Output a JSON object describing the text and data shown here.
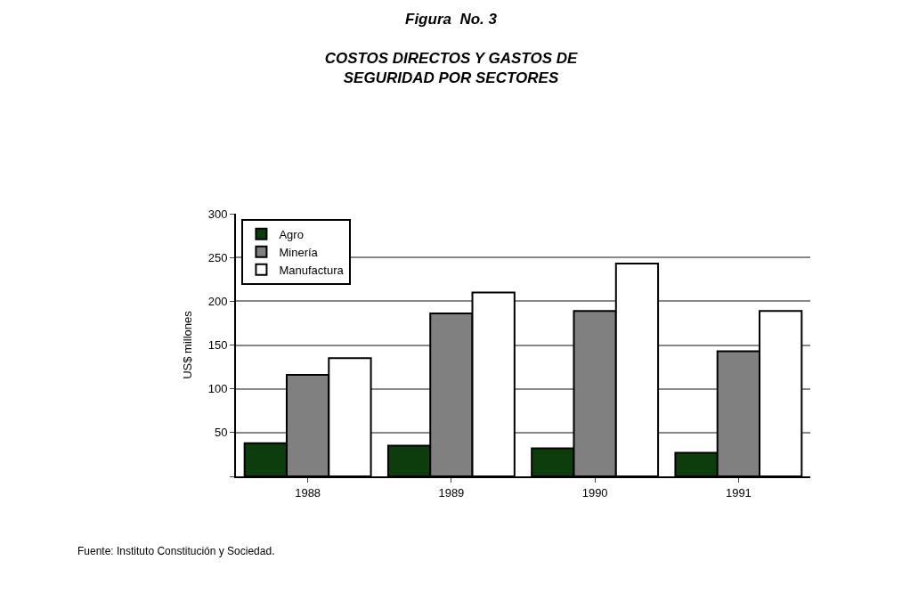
{
  "chart_data": {
    "type": "bar",
    "title": "Figura  No. 3",
    "subtitle": "COSTOS DIRECTOS Y GASTOS DE\nSEGURIDAD POR SECTORES",
    "ylabel": "US$ millones",
    "categories": [
      "1988",
      "1989",
      "1990",
      "1991"
    ],
    "series": [
      {
        "name": "Agro",
        "color": "#0d3d0d",
        "values": [
          38,
          35,
          32,
          27
        ]
      },
      {
        "name": "Minería",
        "color": "#808080",
        "values": [
          116,
          186,
          189,
          143
        ]
      },
      {
        "name": "Manufactura",
        "color": "#ffffff",
        "values": [
          135,
          210,
          243,
          189
        ]
      }
    ],
    "ylim": [
      0,
      300
    ],
    "yticks": [
      {
        "value": 0,
        "label": null
      },
      50,
      100,
      150,
      200,
      250,
      300
    ],
    "grid": "y",
    "legend": "top left",
    "annotations": [
      "Fuente: Instituto Constitución y Sociedad."
    ]
  }
}
